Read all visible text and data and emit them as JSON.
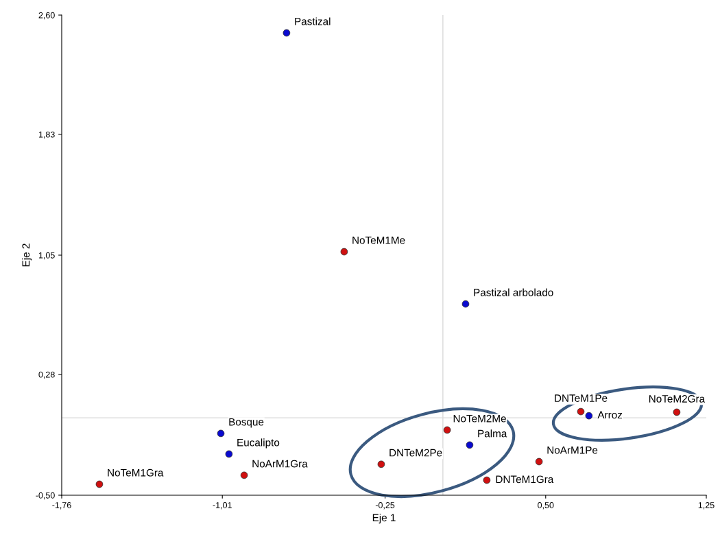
{
  "chart_data": {
    "type": "scatter",
    "xlabel": "Eje 1",
    "ylabel": "Eje 2",
    "xlim": [
      -1.76,
      1.25
    ],
    "ylim": [
      -0.5,
      2.6
    ],
    "xticks": [
      {
        "value": -1.76,
        "label": "-1,76"
      },
      {
        "value": -1.01,
        "label": "-1,01"
      },
      {
        "value": -0.25,
        "label": "-0,25"
      },
      {
        "value": 0.5,
        "label": "0,50"
      },
      {
        "value": 1.25,
        "label": "1,25"
      }
    ],
    "yticks": [
      {
        "value": -0.5,
        "label": "-0,50"
      },
      {
        "value": 0.28,
        "label": "0,28"
      },
      {
        "value": 1.05,
        "label": "1,05"
      },
      {
        "value": 1.83,
        "label": "1,83"
      },
      {
        "value": 2.6,
        "label": "2,60"
      }
    ],
    "marker": "circle",
    "grid": false,
    "legend": false,
    "ref_lines": [
      {
        "axis": "x",
        "value": 0.02,
        "color": "#d9d9d9"
      },
      {
        "axis": "y",
        "value": 0,
        "color": "#d9d9d9"
      }
    ],
    "series": [
      {
        "color": "#0a0ad0",
        "x": [
          -0.71,
          0.126,
          0.702,
          0.145,
          -1.017,
          -0.979
        ],
        "values": [
          2.485,
          0.735,
          0.013,
          -0.176,
          -0.101,
          -0.234
        ]
      },
      {
        "color": "#d01010",
        "x": [
          -0.441,
          0.664,
          1.112,
          0.04,
          0.469,
          0.225,
          -0.268,
          -0.908,
          -1.584
        ],
        "values": [
          1.072,
          0.04,
          0.036,
          -0.079,
          -0.283,
          -0.403,
          -0.3,
          -0.371,
          -0.429
        ]
      }
    ],
    "annotations": [
      {
        "text": "Pastizal",
        "x": -0.71,
        "y": 2.485
      },
      {
        "text": "Pastizal arbolado",
        "x": 0.126,
        "y": 0.735
      },
      {
        "text": "Arroz",
        "x": 0.702,
        "y": 0.013
      },
      {
        "text": "Palma",
        "x": 0.145,
        "y": -0.176
      },
      {
        "text": "Bosque",
        "x": -1.017,
        "y": -0.101
      },
      {
        "text": "Eucalipto",
        "x": -0.979,
        "y": -0.234
      },
      {
        "text": "NoTeM1Me",
        "x": -0.441,
        "y": 1.072
      },
      {
        "text": "DNTeM1Pe",
        "x": 0.664,
        "y": 0.04
      },
      {
        "text": "NoTeM2Gra",
        "x": 1.112,
        "y": 0.036
      },
      {
        "text": "NoTeM2Me",
        "x": 0.04,
        "y": -0.079
      },
      {
        "text": "NoArM1Pe",
        "x": 0.469,
        "y": -0.283
      },
      {
        "text": "DNTeM1Gra",
        "x": 0.225,
        "y": -0.403
      },
      {
        "text": "DNTeM2Pe",
        "x": -0.268,
        "y": -0.3
      },
      {
        "text": "NoArM1Gra",
        "x": -0.908,
        "y": -0.371
      },
      {
        "text": "NoTeM1Gra",
        "x": -1.584,
        "y": -0.429
      }
    ]
  }
}
